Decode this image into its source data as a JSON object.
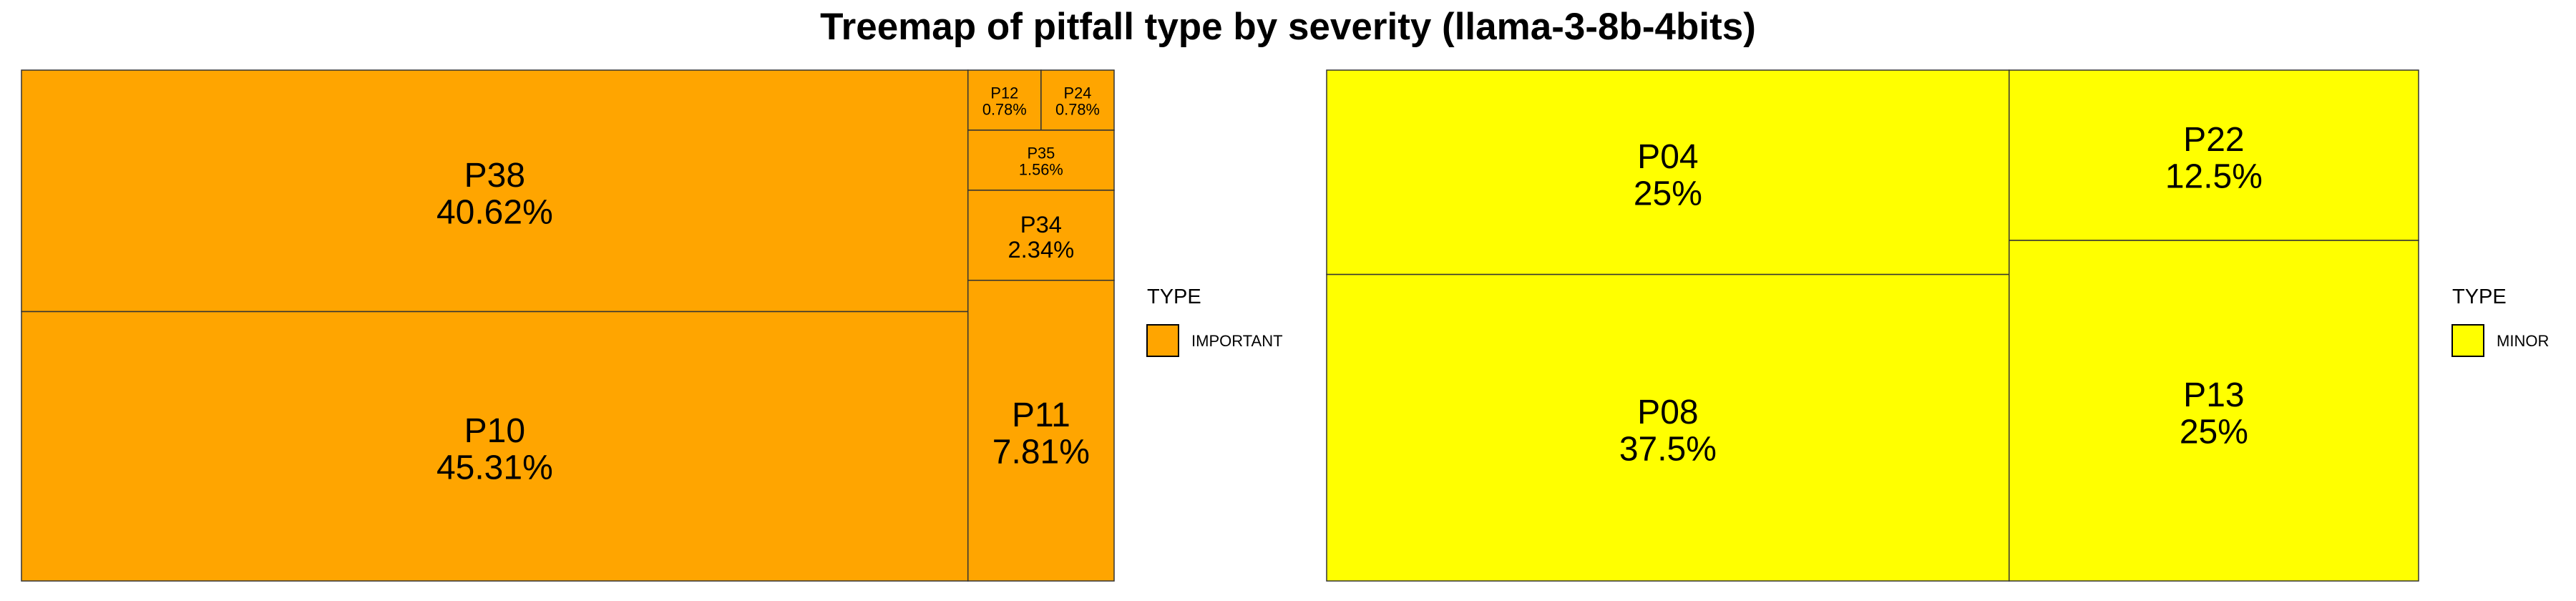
{
  "title": "Treemap of pitfall type by severity (llama-3-8b-4bits)",
  "chart_data": [
    {
      "type": "treemap",
      "group": "IMPORTANT",
      "color": "#FFA500",
      "legend_title": "TYPE",
      "legend_label": "IMPORTANT",
      "tiles": [
        {
          "name": "P38",
          "value": 40.62,
          "label": "40.62%"
        },
        {
          "name": "P10",
          "value": 45.31,
          "label": "45.31%"
        },
        {
          "name": "P12",
          "value": 0.78,
          "label": "0.78%"
        },
        {
          "name": "P24",
          "value": 0.78,
          "label": "0.78%"
        },
        {
          "name": "P35",
          "value": 1.56,
          "label": "1.56%"
        },
        {
          "name": "P34",
          "value": 2.34,
          "label": "2.34%"
        },
        {
          "name": "P11",
          "value": 7.81,
          "label": "7.81%"
        }
      ]
    },
    {
      "type": "treemap",
      "group": "MINOR",
      "color": "#FFFF00",
      "legend_title": "TYPE",
      "legend_label": "MINOR",
      "tiles": [
        {
          "name": "P04",
          "value": 25,
          "label": "25%"
        },
        {
          "name": "P08",
          "value": 37.5,
          "label": "37.5%"
        },
        {
          "name": "P22",
          "value": 12.5,
          "label": "12.5%"
        },
        {
          "name": "P13",
          "value": 25,
          "label": "25%"
        }
      ]
    }
  ]
}
